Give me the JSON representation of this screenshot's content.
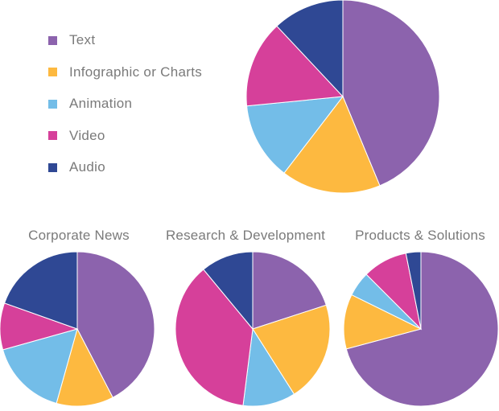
{
  "legend": {
    "items": [
      {
        "label": "Text",
        "color": "#8c63ad"
      },
      {
        "label": "Infographic or Charts",
        "color": "#fdb940"
      },
      {
        "label": "Animation",
        "color": "#73bde8"
      },
      {
        "label": "Video",
        "color": "#d6409a"
      },
      {
        "label": "Audio",
        "color": "#2f4894"
      }
    ]
  },
  "chart_data": [
    {
      "type": "pie",
      "title": "",
      "categories": [
        "Text",
        "Infographic or Charts",
        "Animation",
        "Video",
        "Audio"
      ],
      "values": [
        42,
        16,
        12.5,
        14,
        11.5
      ],
      "start_angle_deg": 0,
      "direction": "clockwise"
    },
    {
      "type": "pie",
      "title": "Corporate News",
      "categories": [
        "Text",
        "Infographic or Charts",
        "Animation",
        "Video",
        "Audio"
      ],
      "values": [
        39,
        11,
        15,
        9,
        18
      ],
      "start_angle_deg": 0,
      "direction": "clockwise"
    },
    {
      "type": "pie",
      "title": "Research & Development",
      "categories": [
        "Text",
        "Infographic or Charts",
        "Animation",
        "Video",
        "Audio"
      ],
      "values": [
        20,
        21,
        11,
        37,
        11
      ],
      "start_angle_deg": 0,
      "direction": "clockwise"
    },
    {
      "type": "pie",
      "title": "Products & Solutions",
      "categories": [
        "Text",
        "Infographic or Charts",
        "Animation",
        "Video",
        "Audio"
      ],
      "values": [
        68,
        11,
        5,
        9,
        3
      ],
      "start_angle_deg": 0,
      "direction": "clockwise"
    }
  ]
}
